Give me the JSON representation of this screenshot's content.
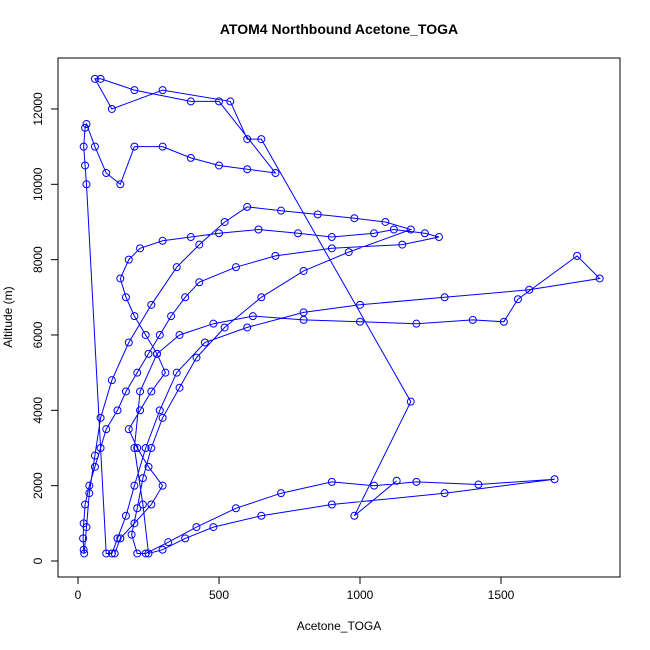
{
  "chart_data": {
    "type": "scatter",
    "title": "ATOM4 Northbound Acetone_TOGA",
    "xlabel": "Acetone_TOGA",
    "ylabel": "Altitude (m)",
    "color": "#0000ff",
    "xlim": [
      -71,
      1922
    ],
    "ylim": [
      -425,
      13353
    ],
    "xticks": [
      0,
      500,
      1000,
      1500
    ],
    "yticks": [
      0,
      2000,
      4000,
      6000,
      8000,
      10000,
      12000
    ],
    "x": [
      130,
      150,
      200,
      260,
      300,
      250,
      210,
      180,
      220,
      260,
      310,
      280,
      240,
      200,
      170,
      150,
      180,
      220,
      300,
      400,
      500,
      640,
      780,
      900,
      1050,
      1120,
      1230,
      1280,
      1150,
      900,
      700,
      560,
      430,
      380,
      330,
      290,
      250,
      210,
      170,
      140,
      100,
      80,
      60,
      40,
      25,
      20,
      18,
      20,
      22,
      30,
      40,
      60,
      80,
      120,
      180,
      260,
      350,
      430,
      520,
      600,
      720,
      850,
      980,
      1090,
      1180,
      960,
      800,
      650,
      520,
      420,
      360,
      300,
      260,
      230,
      210,
      190,
      210,
      240,
      320,
      420,
      560,
      720,
      900,
      1050,
      1200,
      1420,
      1690,
      1300,
      900,
      650,
      480,
      380,
      300,
      250,
      230,
      200,
      220,
      280,
      360,
      480,
      620,
      800,
      1000,
      1200,
      1400,
      1510,
      1560,
      1770,
      1850,
      1600,
      1300,
      1000,
      800,
      600,
      450,
      350,
      290,
      240,
      200,
      170,
      140,
      120,
      100,
      30,
      25,
      20,
      25,
      30,
      60,
      100,
      150,
      200,
      300,
      400,
      500,
      600,
      700,
      500,
      400,
      200,
      80,
      60,
      120,
      300,
      540,
      600,
      650,
      1180,
      980,
      1130
    ],
    "values": [
      200,
      600,
      1000,
      1500,
      2000,
      2500,
      3000,
      3500,
      4000,
      4500,
      5000,
      5500,
      6000,
      6500,
      7000,
      7500,
      8000,
      8300,
      8500,
      8600,
      8700,
      8800,
      8700,
      8600,
      8700,
      8800,
      8700,
      8600,
      8400,
      8300,
      8100,
      7800,
      7400,
      7000,
      6500,
      6000,
      5500,
      5000,
      4500,
      4000,
      3500,
      3000,
      2500,
      2000,
      1500,
      1000,
      600,
      300,
      200,
      900,
      1800,
      2800,
      3800,
      4800,
      5800,
      6800,
      7800,
      8400,
      9000,
      9400,
      9300,
      9200,
      9100,
      9000,
      8800,
      8200,
      7700,
      7000,
      6200,
      5400,
      4600,
      3800,
      3000,
      2200,
      1400,
      700,
      200,
      200,
      500,
      900,
      1400,
      1800,
      2100,
      2000,
      2100,
      2030,
      2170,
      1800,
      1500,
      1200,
      900,
      600,
      300,
      200,
      1500,
      3000,
      4500,
      5500,
      6000,
      6300,
      6500,
      6400,
      6350,
      6300,
      6400,
      6350,
      6950,
      8100,
      7500,
      7200,
      7000,
      6800,
      6600,
      6200,
      5800,
      5000,
      4000,
      3000,
      2000,
      1200,
      600,
      200,
      200,
      10000,
      10500,
      11000,
      11500,
      11600,
      11000,
      10300,
      10000,
      11000,
      11000,
      10700,
      10500,
      10400,
      10300,
      12200,
      12200,
      12500,
      12800,
      12800,
      12000,
      12500,
      12200,
      11200,
      11200,
      4230,
      1200,
      2130
    ]
  }
}
